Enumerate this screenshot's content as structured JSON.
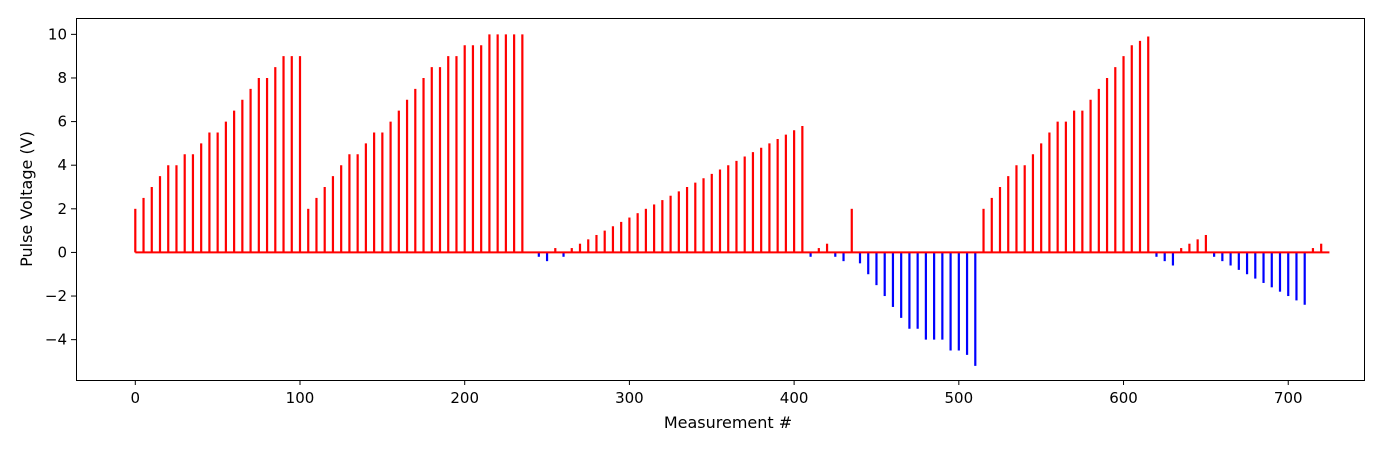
{
  "chart_data": {
    "type": "bar",
    "title": "",
    "xlabel": "Measurement #",
    "ylabel": "Pulse Voltage (V)",
    "xlim": [
      -36,
      746
    ],
    "ylim": [
      -5.85,
      10.75
    ],
    "xticks": [
      0,
      100,
      200,
      300,
      400,
      500,
      600,
      700
    ],
    "yticks": [
      -4,
      -2,
      0,
      2,
      4,
      6,
      8,
      10
    ],
    "grid": false,
    "legend": "none",
    "colors": {
      "positive": "#ff0000",
      "negative": "#0000ff",
      "baseline": "#ff0000",
      "axes": "#000000"
    },
    "series": [
      {
        "color": "#ff0000",
        "points": [
          [
            0,
            2.0
          ],
          [
            5,
            2.5
          ],
          [
            10,
            3.0
          ],
          [
            15,
            3.5
          ],
          [
            20,
            4.0
          ],
          [
            25,
            4.0
          ],
          [
            30,
            4.5
          ],
          [
            35,
            4.5
          ],
          [
            40,
            5.0
          ],
          [
            45,
            5.5
          ],
          [
            50,
            5.5
          ],
          [
            55,
            6.0
          ],
          [
            60,
            6.5
          ],
          [
            65,
            7.0
          ],
          [
            70,
            7.5
          ],
          [
            75,
            8.0
          ],
          [
            80,
            8.0
          ],
          [
            85,
            8.5
          ],
          [
            90,
            9.0
          ],
          [
            95,
            9.0
          ],
          [
            100,
            9.0
          ],
          [
            105,
            2.0
          ],
          [
            110,
            2.5
          ],
          [
            115,
            3.0
          ],
          [
            120,
            3.5
          ],
          [
            125,
            4.0
          ],
          [
            130,
            4.5
          ],
          [
            135,
            4.5
          ],
          [
            140,
            5.0
          ],
          [
            145,
            5.5
          ],
          [
            150,
            5.5
          ],
          [
            155,
            6.0
          ],
          [
            160,
            6.5
          ],
          [
            165,
            7.0
          ],
          [
            170,
            7.5
          ],
          [
            175,
            8.0
          ],
          [
            180,
            8.5
          ],
          [
            185,
            8.5
          ],
          [
            190,
            9.0
          ],
          [
            195,
            9.0
          ],
          [
            200,
            9.5
          ],
          [
            205,
            9.5
          ],
          [
            210,
            9.5
          ],
          [
            215,
            10.0
          ],
          [
            220,
            10.0
          ],
          [
            225,
            10.0
          ],
          [
            230,
            10.0
          ],
          [
            235,
            10.0
          ],
          [
            255,
            0.2
          ],
          [
            265,
            0.2
          ],
          [
            270,
            0.4
          ],
          [
            275,
            0.6
          ],
          [
            280,
            0.8
          ],
          [
            285,
            1.0
          ],
          [
            290,
            1.2
          ],
          [
            295,
            1.4
          ],
          [
            300,
            1.6
          ],
          [
            305,
            1.8
          ],
          [
            310,
            2.0
          ],
          [
            315,
            2.2
          ],
          [
            320,
            2.4
          ],
          [
            325,
            2.6
          ],
          [
            330,
            2.8
          ],
          [
            335,
            3.0
          ],
          [
            340,
            3.2
          ],
          [
            345,
            3.4
          ],
          [
            350,
            3.6
          ],
          [
            355,
            3.8
          ],
          [
            360,
            4.0
          ],
          [
            365,
            4.2
          ],
          [
            370,
            4.4
          ],
          [
            375,
            4.6
          ],
          [
            380,
            4.8
          ],
          [
            385,
            5.0
          ],
          [
            390,
            5.2
          ],
          [
            395,
            5.4
          ],
          [
            400,
            5.6
          ],
          [
            405,
            5.8
          ],
          [
            415,
            0.2
          ],
          [
            420,
            0.4
          ],
          [
            435,
            2.0
          ],
          [
            515,
            2.0
          ],
          [
            520,
            2.5
          ],
          [
            525,
            3.0
          ],
          [
            530,
            3.5
          ],
          [
            535,
            4.0
          ],
          [
            540,
            4.0
          ],
          [
            545,
            4.5
          ],
          [
            550,
            5.0
          ],
          [
            555,
            5.5
          ],
          [
            560,
            6.0
          ],
          [
            565,
            6.0
          ],
          [
            570,
            6.5
          ],
          [
            575,
            6.5
          ],
          [
            580,
            7.0
          ],
          [
            585,
            7.5
          ],
          [
            590,
            8.0
          ],
          [
            595,
            8.5
          ],
          [
            600,
            9.0
          ],
          [
            605,
            9.5
          ],
          [
            610,
            9.7
          ],
          [
            615,
            9.9
          ],
          [
            635,
            0.2
          ],
          [
            640,
            0.4
          ],
          [
            645,
            0.6
          ],
          [
            650,
            0.8
          ],
          [
            715,
            0.2
          ],
          [
            720,
            0.4
          ]
        ]
      },
      {
        "color": "#0000ff",
        "points": [
          [
            245,
            -0.2
          ],
          [
            250,
            -0.4
          ],
          [
            260,
            -0.2
          ],
          [
            410,
            -0.2
          ],
          [
            425,
            -0.2
          ],
          [
            430,
            -0.4
          ],
          [
            440,
            -0.5
          ],
          [
            445,
            -1.0
          ],
          [
            450,
            -1.5
          ],
          [
            455,
            -2.0
          ],
          [
            460,
            -2.5
          ],
          [
            465,
            -3.0
          ],
          [
            470,
            -3.5
          ],
          [
            475,
            -3.5
          ],
          [
            480,
            -4.0
          ],
          [
            485,
            -4.0
          ],
          [
            490,
            -4.0
          ],
          [
            495,
            -4.5
          ],
          [
            500,
            -4.5
          ],
          [
            505,
            -4.7
          ],
          [
            510,
            -5.2
          ],
          [
            620,
            -0.2
          ],
          [
            625,
            -0.4
          ],
          [
            630,
            -0.6
          ],
          [
            655,
            -0.2
          ],
          [
            660,
            -0.4
          ],
          [
            665,
            -0.6
          ],
          [
            670,
            -0.8
          ],
          [
            675,
            -1.0
          ],
          [
            680,
            -1.2
          ],
          [
            685,
            -1.4
          ],
          [
            690,
            -1.6
          ],
          [
            695,
            -1.8
          ],
          [
            700,
            -2.0
          ],
          [
            705,
            -2.2
          ],
          [
            710,
            -2.4
          ]
        ]
      }
    ],
    "baseline": {
      "y": 0,
      "x_range": [
        0,
        725
      ]
    }
  }
}
